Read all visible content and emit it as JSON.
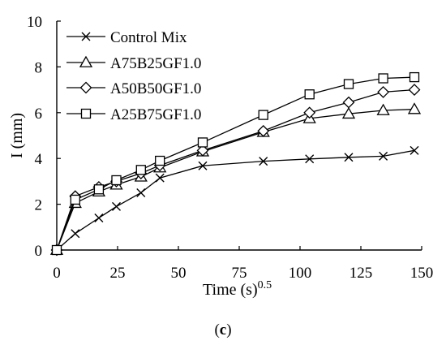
{
  "chart_data": {
    "type": "line",
    "xlabel": "Time (s)",
    "xlabel_sup": "0.5",
    "ylabel": "I (mm)",
    "caption_pre": "(",
    "caption_letter": "c",
    "caption_post": ")",
    "xlim": [
      0,
      150
    ],
    "ylim": [
      0,
      10
    ],
    "xticks": [
      0,
      25,
      50,
      75,
      100,
      125,
      150
    ],
    "yticks": [
      0,
      2,
      4,
      6,
      8,
      10
    ],
    "grid": false,
    "legend_position": "top-left",
    "series": [
      {
        "name": "Control Mix",
        "marker": "x",
        "x": [
          0,
          7.6,
          17.3,
          24.5,
          34.6,
          42.4,
          60,
          84.9,
          103.9,
          120,
          134.2,
          147
        ],
        "y": [
          0,
          0.72,
          1.4,
          1.9,
          2.5,
          3.15,
          3.68,
          3.88,
          3.98,
          4.05,
          4.1,
          4.35
        ]
      },
      {
        "name": "A75B25GF1.0",
        "marker": "triangle",
        "x": [
          0,
          7.6,
          17.3,
          24.5,
          34.6,
          42.4,
          60,
          84.9,
          103.9,
          120,
          134.2,
          147
        ],
        "y": [
          0,
          2.05,
          2.55,
          2.85,
          3.2,
          3.6,
          4.3,
          5.15,
          5.75,
          5.95,
          6.1,
          6.15
        ]
      },
      {
        "name": "A50B50GF1.0",
        "marker": "diamond",
        "x": [
          0,
          7.6,
          17.3,
          24.5,
          34.6,
          42.4,
          60,
          84.9,
          103.9,
          120,
          134.2,
          147
        ],
        "y": [
          0,
          2.35,
          2.75,
          3.0,
          3.35,
          3.7,
          4.35,
          5.2,
          6.0,
          6.45,
          6.9,
          7.0
        ]
      },
      {
        "name": "A25B75GF1.0",
        "marker": "square",
        "x": [
          0,
          7.6,
          17.3,
          24.5,
          34.6,
          42.4,
          60,
          84.9,
          103.9,
          120,
          134.2,
          147
        ],
        "y": [
          0,
          2.2,
          2.65,
          3.05,
          3.5,
          3.9,
          4.7,
          5.9,
          6.8,
          7.25,
          7.5,
          7.55
        ]
      }
    ]
  }
}
